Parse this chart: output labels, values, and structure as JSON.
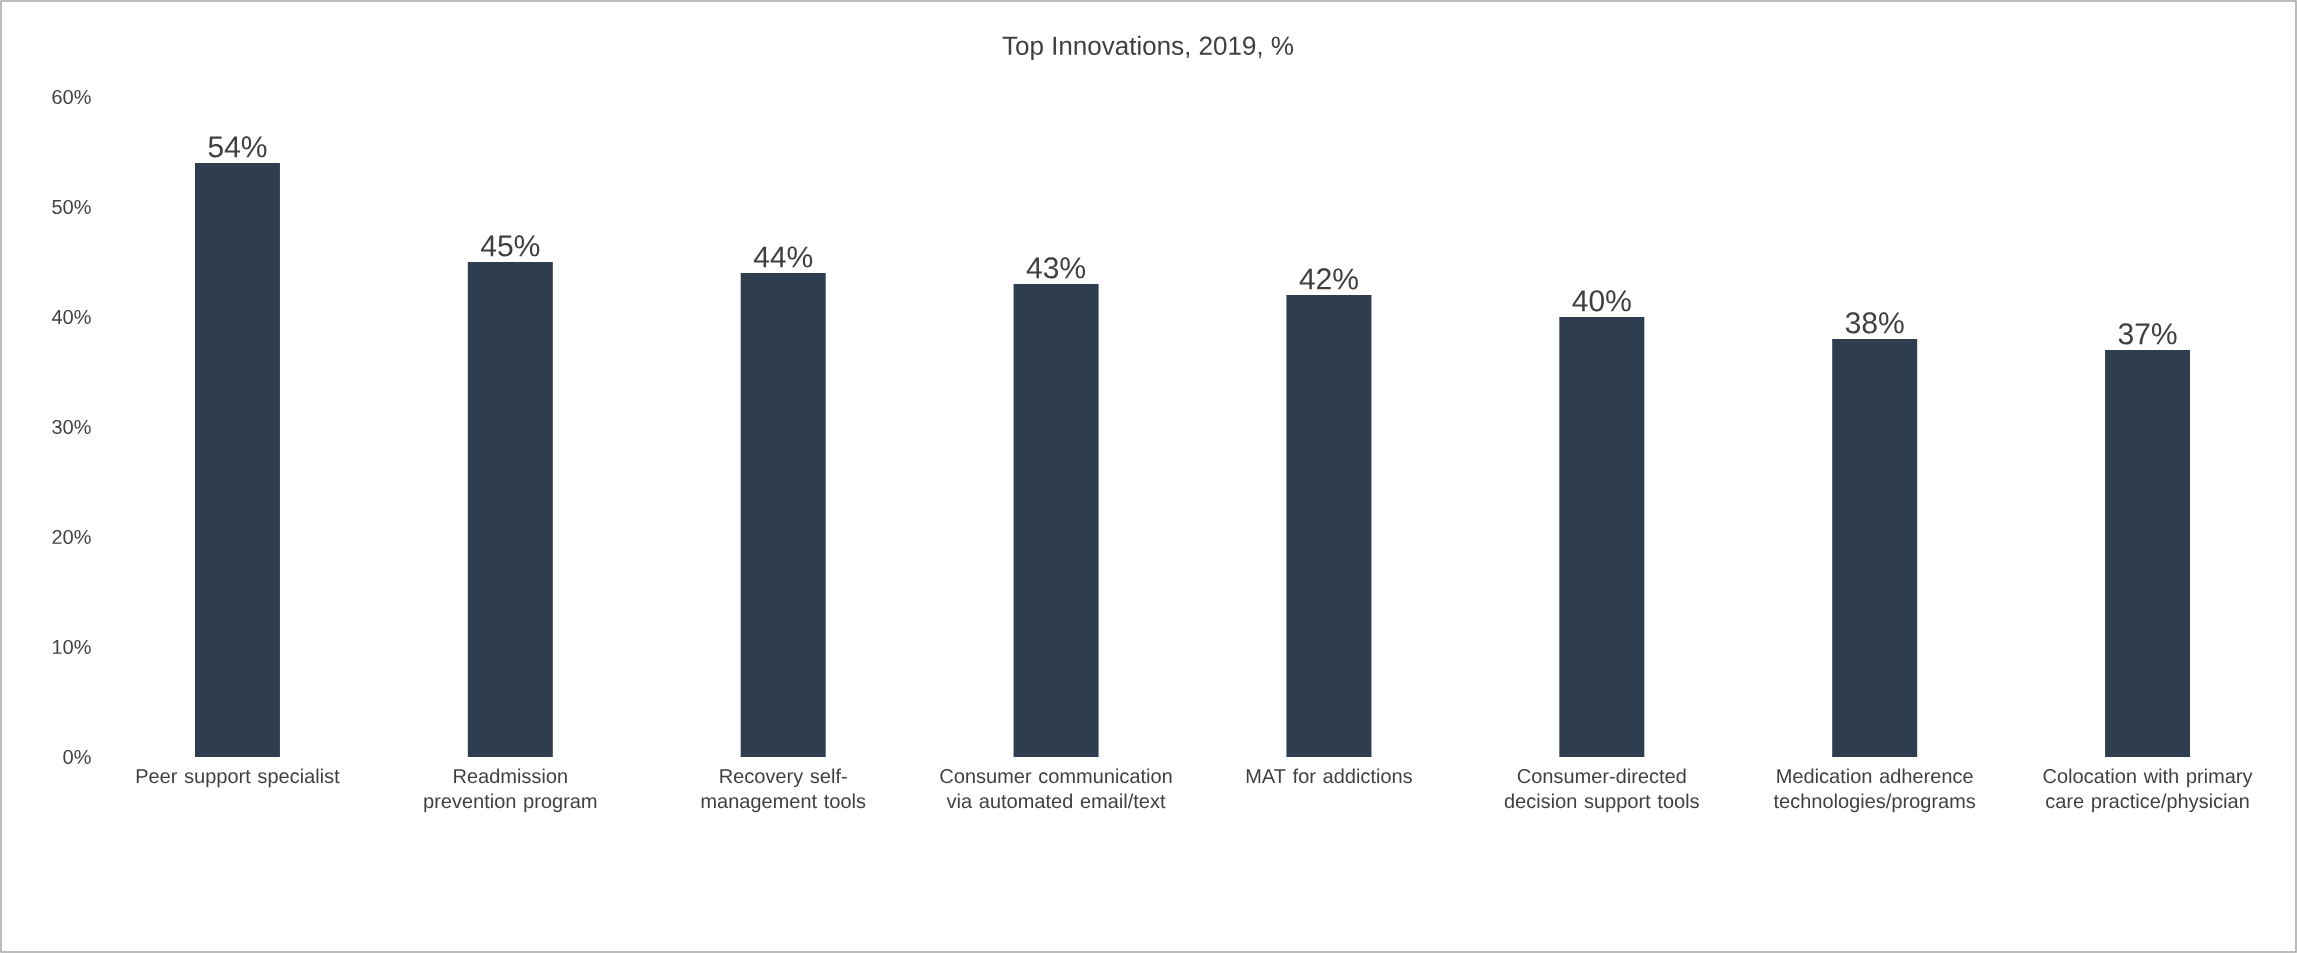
{
  "chart_data": {
    "type": "bar",
    "title": "Top Innovations, 2019, %",
    "categories": [
      "Peer support specialist",
      "Readmission prevention program",
      "Recovery self-management tools",
      "Consumer communication via automated email/text",
      "MAT for addictions",
      "Consumer-directed decision support tools",
      "Medication adherence technologies/programs",
      "Colocation with primary care practice/physician"
    ],
    "values": [
      54,
      45,
      44,
      43,
      42,
      40,
      38,
      37
    ],
    "value_labels": [
      "54%",
      "45%",
      "44%",
      "43%",
      "42%",
      "40%",
      "38%",
      "37%"
    ],
    "color": "#2f3e4e",
    "ylim": [
      0,
      60
    ],
    "yticks": [
      {
        "value": 0,
        "label": "0%"
      },
      {
        "value": 10,
        "label": "10%"
      },
      {
        "value": 20,
        "label": "20%"
      },
      {
        "value": 30,
        "label": "30%"
      },
      {
        "value": 40,
        "label": "40%"
      },
      {
        "value": 50,
        "label": "50%"
      },
      {
        "value": 60,
        "label": "60%"
      }
    ],
    "grid": false
  }
}
